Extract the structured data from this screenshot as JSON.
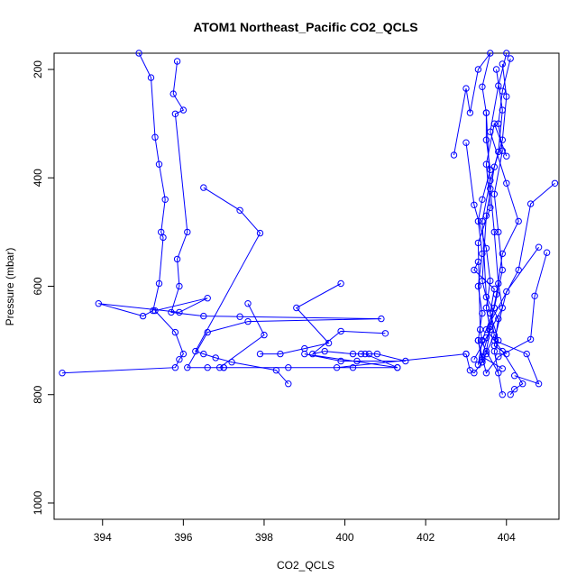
{
  "chart_data": {
    "type": "line",
    "title": "ATOM1 Northeast_Pacific CO2_QCLS",
    "xlabel": "CO2_QCLS",
    "ylabel": "Pressure (mbar)",
    "xlim": [
      392.8,
      405.3
    ],
    "ylim": [
      1030,
      170
    ],
    "y_reversed": true,
    "xticks": [
      394,
      396,
      398,
      400,
      402,
      404
    ],
    "yticks": [
      200,
      400,
      600,
      800,
      1000
    ],
    "grid": false,
    "line_color": "#0000ff",
    "marker": "open-circle",
    "series": [
      {
        "points": [
          [
            394.9,
            170
          ],
          [
            395.2,
            215
          ],
          [
            395.3,
            325
          ],
          [
            395.4,
            375
          ],
          [
            395.55,
            440
          ],
          [
            395.45,
            500
          ],
          [
            395.5,
            510
          ],
          [
            395.4,
            595
          ],
          [
            395.25,
            645
          ],
          [
            395.0,
            655
          ],
          [
            393.9,
            632
          ],
          [
            395.9,
            648
          ],
          [
            396.6,
            622
          ],
          [
            395.3,
            645
          ],
          [
            395.8,
            685
          ],
          [
            396.0,
            725
          ],
          [
            395.9,
            735
          ],
          [
            395.8,
            750
          ],
          [
            393.0,
            760
          ]
        ]
      },
      {
        "points": [
          [
            395.85,
            185
          ],
          [
            395.75,
            245
          ],
          [
            396.0,
            275
          ],
          [
            395.8,
            282
          ],
          [
            396.1,
            500
          ],
          [
            395.85,
            550
          ],
          [
            395.9,
            600
          ],
          [
            395.7,
            648
          ],
          [
            396.5,
            655
          ],
          [
            397.4,
            656
          ],
          [
            400.9,
            660
          ],
          [
            397.6,
            665
          ],
          [
            396.6,
            685
          ],
          [
            396.1,
            750
          ],
          [
            396.6,
            750
          ],
          [
            397.0,
            750
          ],
          [
            397.0,
            750
          ]
        ]
      },
      {
        "points": [
          [
            396.5,
            418
          ],
          [
            397.4,
            460
          ],
          [
            397.9,
            502
          ],
          [
            396.3,
            720
          ],
          [
            396.5,
            725
          ],
          [
            396.8,
            732
          ],
          [
            397.2,
            740
          ],
          [
            398.3,
            755
          ],
          [
            398.6,
            780
          ]
        ]
      },
      {
        "points": [
          [
            397.6,
            632
          ],
          [
            398.0,
            690
          ],
          [
            396.9,
            750
          ],
          [
            398.6,
            750
          ],
          [
            401.3,
            750
          ],
          [
            400.2,
            750
          ],
          [
            399.8,
            750
          ],
          [
            403.0,
            725
          ]
        ]
      },
      {
        "points": [
          [
            399.9,
            595
          ],
          [
            398.8,
            640
          ],
          [
            399.6,
            705
          ],
          [
            399.0,
            715
          ],
          [
            398.4,
            725
          ],
          [
            397.9,
            725
          ]
        ]
      },
      {
        "points": [
          [
            401.0,
            687
          ],
          [
            399.9,
            683
          ],
          [
            399.2,
            725
          ],
          [
            399.5,
            720
          ],
          [
            400.2,
            725
          ],
          [
            400.4,
            725
          ],
          [
            400.6,
            725
          ],
          [
            400.8,
            725
          ],
          [
            401.5,
            738
          ],
          [
            400.3,
            738
          ],
          [
            399.9,
            738
          ],
          [
            399.0,
            725
          ],
          [
            401.3,
            750
          ],
          [
            400.5,
            725
          ]
        ]
      },
      {
        "points": [
          [
            402.7,
            358
          ],
          [
            403.0,
            235
          ],
          [
            403.1,
            280
          ],
          [
            403.3,
            200
          ],
          [
            403.6,
            170
          ],
          [
            403.4,
            232
          ],
          [
            403.5,
            280
          ],
          [
            403.5,
            330
          ],
          [
            403.6,
            385
          ],
          [
            403.4,
            440
          ],
          [
            403.3,
            480
          ],
          [
            403.4,
            540
          ],
          [
            403.3,
            600
          ],
          [
            403.4,
            650
          ],
          [
            403.3,
            700
          ],
          [
            403.4,
            740
          ],
          [
            403.2,
            760
          ],
          [
            403.1,
            755
          ],
          [
            403.0,
            725
          ]
        ]
      },
      {
        "points": [
          [
            403.0,
            335
          ],
          [
            403.2,
            450
          ],
          [
            403.5,
            530
          ],
          [
            403.6,
            590
          ],
          [
            403.5,
            640
          ],
          [
            403.6,
            680
          ],
          [
            403.5,
            720
          ],
          [
            403.8,
            760
          ]
        ]
      },
      {
        "points": [
          [
            403.3,
            555
          ],
          [
            403.2,
            570
          ],
          [
            403.7,
            605
          ],
          [
            403.6,
            650
          ],
          [
            403.8,
            700
          ],
          [
            403.7,
            720
          ],
          [
            403.9,
            800
          ]
        ]
      },
      {
        "points": [
          [
            403.5,
            280
          ],
          [
            403.6,
            420
          ],
          [
            403.7,
            500
          ],
          [
            403.8,
            595
          ],
          [
            403.9,
            640
          ],
          [
            403.5,
            695
          ],
          [
            403.2,
            735
          ]
        ]
      },
      {
        "points": [
          [
            403.75,
            200
          ],
          [
            403.9,
            275
          ],
          [
            403.8,
            352
          ],
          [
            403.7,
            380
          ],
          [
            403.5,
            470
          ],
          [
            403.4,
            590
          ],
          [
            403.6,
            650
          ],
          [
            403.7,
            690
          ],
          [
            403.4,
            740
          ]
        ]
      },
      {
        "points": [
          [
            403.9,
            190
          ],
          [
            404.0,
            250
          ],
          [
            403.9,
            330
          ],
          [
            403.6,
            405
          ],
          [
            403.4,
            480
          ],
          [
            403.5,
            620
          ],
          [
            403.8,
            660
          ],
          [
            403.7,
            710
          ],
          [
            404.0,
            725
          ]
        ]
      },
      {
        "points": [
          [
            404.0,
            170
          ],
          [
            403.8,
            230
          ],
          [
            403.6,
            315
          ],
          [
            404.0,
            410
          ],
          [
            404.3,
            480
          ],
          [
            403.9,
            540
          ],
          [
            403.75,
            615
          ],
          [
            403.6,
            675
          ],
          [
            403.4,
            730
          ],
          [
            403.9,
            752
          ]
        ]
      },
      {
        "points": [
          [
            404.1,
            180
          ],
          [
            403.9,
            240
          ],
          [
            403.8,
            300
          ],
          [
            403.9,
            350
          ],
          [
            403.7,
            430
          ],
          [
            403.8,
            500
          ],
          [
            403.9,
            570
          ],
          [
            403.7,
            640
          ],
          [
            403.4,
            700
          ],
          [
            403.3,
            745
          ]
        ]
      },
      {
        "points": [
          [
            405.2,
            410
          ],
          [
            404.6,
            448
          ],
          [
            404.3,
            570
          ],
          [
            403.5,
            680
          ],
          [
            403.9,
            720
          ],
          [
            404.4,
            780
          ],
          [
            404.2,
            790
          ],
          [
            404.1,
            800
          ]
        ]
      },
      {
        "points": [
          [
            404.8,
            528
          ],
          [
            404.0,
            610
          ],
          [
            403.7,
            700
          ],
          [
            404.5,
            725
          ],
          [
            404.8,
            780
          ],
          [
            404.2,
            765
          ]
        ]
      },
      {
        "points": [
          [
            405.0,
            538
          ],
          [
            404.7,
            618
          ],
          [
            404.6,
            698
          ],
          [
            403.8,
            730
          ],
          [
            403.5,
            760
          ],
          [
            403.3,
            700
          ],
          [
            403.4,
            735
          ]
        ]
      },
      {
        "points": [
          [
            404.0,
            360
          ],
          [
            403.7,
            300
          ],
          [
            403.5,
            375
          ],
          [
            403.6,
            455
          ],
          [
            403.3,
            520
          ],
          [
            403.35,
            680
          ],
          [
            403.4,
            700
          ],
          [
            403.5,
            725
          ]
        ]
      }
    ]
  }
}
